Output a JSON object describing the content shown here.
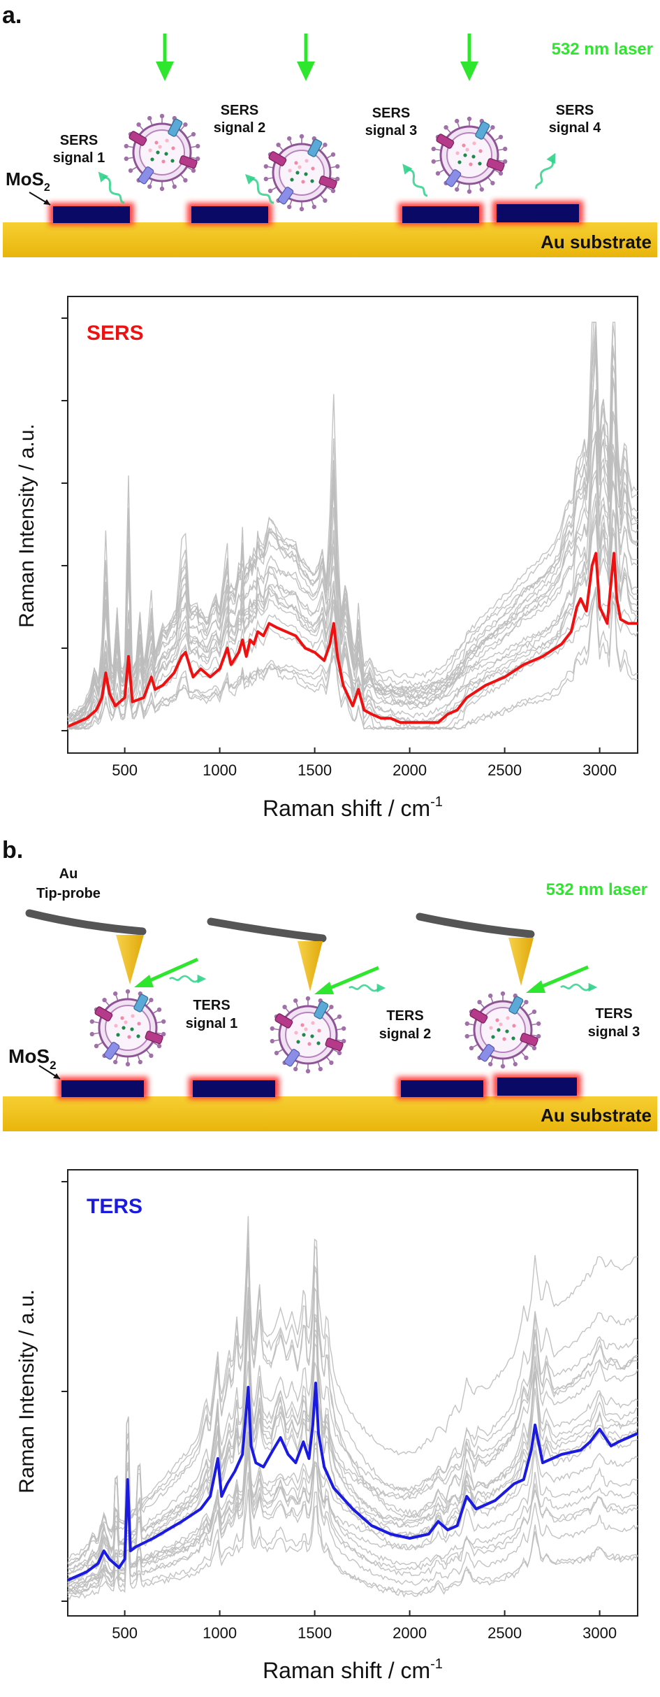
{
  "panel_a": {
    "label": "a.",
    "laser_label": "532 nm laser",
    "mos2_label": "MoS",
    "mos2_sub": "2",
    "substrate_label": "Au substrate",
    "signals": [
      [
        "SERS",
        "signal 1"
      ],
      [
        "SERS",
        "signal 2"
      ],
      [
        "SERS",
        "signal 3"
      ],
      [
        "SERS",
        "signal 4"
      ]
    ]
  },
  "panel_b": {
    "label": "b.",
    "laser_label": "532 nm laser",
    "tip_label_1": "Au",
    "tip_label_2": "Tip-probe",
    "mos2_label": "MoS",
    "mos2_sub": "2",
    "substrate_label": "Au substrate",
    "signals": [
      [
        "TERS",
        "signal 1"
      ],
      [
        "TERS",
        "signal 2"
      ],
      [
        "TERS",
        "signal 3"
      ]
    ]
  },
  "colors": {
    "laser": "#2ee62e",
    "gold": "#f2c318",
    "mos2": "#0a0a66",
    "glow": "#ff2a2a",
    "sers_line": "#ee1111",
    "ters_line": "#1a1ae0",
    "grey_traces": "#bdbdbd"
  },
  "chart_data": [
    {
      "type": "line",
      "title": "SERS",
      "xlabel": "Raman shift / cm",
      "xlabel_sup": "-1",
      "ylabel": "Raman Intensity / a.u.",
      "xlim": [
        200,
        3200
      ],
      "ylim": [
        0,
        100
      ],
      "x_ticks": [
        500,
        1000,
        1500,
        2000,
        2500,
        3000
      ],
      "y_ticks": [
        0,
        20,
        40,
        60,
        80,
        100
      ],
      "y_tick_labels_shown": false,
      "series": [
        {
          "highlight": true,
          "x": [
            200,
            300,
            350,
            380,
            400,
            420,
            450,
            500,
            520,
            540,
            600,
            640,
            660,
            700,
            760,
            800,
            820,
            860,
            900,
            950,
            1000,
            1040,
            1060,
            1100,
            1120,
            1140,
            1160,
            1180,
            1200,
            1230,
            1260,
            1300,
            1350,
            1400,
            1450,
            1500,
            1550,
            1580,
            1600,
            1620,
            1650,
            1700,
            1730,
            1760,
            1800,
            1850,
            1900,
            1950,
            2000,
            2050,
            2100,
            2150,
            2200,
            2250,
            2300,
            2400,
            2500,
            2600,
            2700,
            2800,
            2850,
            2880,
            2900,
            2930,
            2960,
            2980,
            3000,
            3020,
            3040,
            3060,
            3075,
            3090,
            3110,
            3150,
            3200
          ],
          "y": [
            1,
            3,
            5,
            8,
            14,
            9,
            6,
            8,
            18,
            7,
            8,
            13,
            10,
            11,
            14,
            18,
            19,
            13,
            15,
            13,
            15,
            20,
            16,
            19,
            22,
            18,
            22,
            21,
            24,
            23,
            26,
            25,
            24,
            23,
            20,
            19,
            17,
            21,
            26,
            18,
            11,
            6,
            10,
            5,
            4,
            3,
            3,
            2,
            2,
            2,
            2,
            2,
            4,
            5,
            8,
            11,
            13,
            16,
            18,
            21,
            24,
            30,
            32,
            29,
            40,
            43,
            30,
            28,
            26,
            36,
            43,
            32,
            27,
            26,
            26
          ]
        }
      ],
      "background_trace_count": 22
    },
    {
      "type": "line",
      "title": "TERS",
      "xlabel": "Raman shift / cm",
      "xlabel_sup": "-1",
      "ylabel": "Raman Intensity / a.u.",
      "xlim": [
        200,
        3200
      ],
      "ylim": [
        0,
        100
      ],
      "x_ticks": [
        500,
        1000,
        1500,
        2000,
        2500,
        3000
      ],
      "y_ticks": [
        0,
        50,
        100
      ],
      "y_tick_labels_shown": false,
      "series": [
        {
          "highlight": true,
          "x": [
            200,
            300,
            360,
            390,
            420,
            470,
            500,
            515,
            530,
            560,
            650,
            800,
            900,
            950,
            990,
            1010,
            1040,
            1080,
            1120,
            1150,
            1165,
            1190,
            1230,
            1280,
            1320,
            1360,
            1400,
            1440,
            1470,
            1490,
            1505,
            1520,
            1550,
            1600,
            1700,
            1800,
            1900,
            2000,
            2100,
            2150,
            2200,
            2250,
            2300,
            2350,
            2400,
            2450,
            2500,
            2550,
            2600,
            2640,
            2660,
            2700,
            2750,
            2800,
            2900,
            2950,
            3000,
            3030,
            3060,
            3100,
            3150,
            3200
          ],
          "y": [
            5,
            7,
            9,
            12,
            10,
            8,
            10,
            29,
            12,
            13,
            15,
            19,
            22,
            25,
            34,
            25,
            28,
            31,
            35,
            51,
            37,
            33,
            32,
            36,
            39,
            35,
            33,
            38,
            34,
            42,
            52,
            40,
            32,
            27,
            22,
            18,
            16,
            15,
            16,
            19,
            17,
            18,
            25,
            22,
            23,
            24,
            26,
            28,
            29,
            36,
            42,
            33,
            34,
            35,
            36,
            38,
            41,
            39,
            37,
            38,
            39,
            40
          ]
        }
      ],
      "background_trace_count": 22
    }
  ]
}
